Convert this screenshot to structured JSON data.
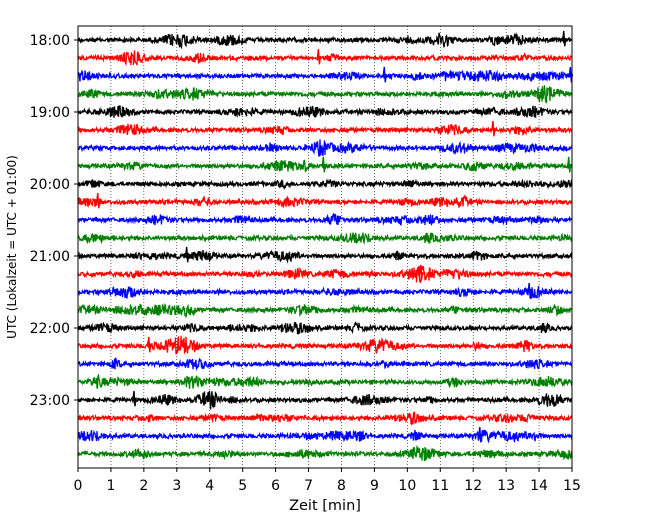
{
  "chart_data": {
    "type": "line",
    "title": "",
    "xlabel": "Zeit  [min]",
    "ylabel": "UTC (Lokalzeit = UTC + 01:00)",
    "xlim": [
      0,
      15
    ],
    "x_ticks": [
      "0",
      "1",
      "2",
      "3",
      "4",
      "5",
      "6",
      "7",
      "8",
      "9",
      "10",
      "11",
      "12",
      "13",
      "14",
      "15"
    ],
    "y_tick_labels": [
      "18:00",
      "19:00",
      "20:00",
      "21:00",
      "22:00",
      "23:00"
    ],
    "y_tick_hours": [
      18,
      19,
      20,
      21,
      22,
      23
    ],
    "rows_start": "18:00",
    "rows_interval_min": 15,
    "row_count": 24,
    "series_colors": [
      "#000000",
      "#ff0000",
      "#0000ff",
      "#008000"
    ],
    "grid": "vertical dotted lines at each minute",
    "spikes": [
      {
        "row": 0,
        "minute": 14.75
      },
      {
        "row": 1,
        "minute": 7.3
      },
      {
        "row": 2,
        "minute": 9.3
      },
      {
        "row": 2,
        "minute": 14.95
      },
      {
        "row": 5,
        "minute": 12.6
      },
      {
        "row": 7,
        "minute": 7.45
      },
      {
        "row": 7,
        "minute": 14.9
      },
      {
        "row": 9,
        "minute": 0.6
      },
      {
        "row": 12,
        "minute": 3.3
      },
      {
        "row": 13,
        "minute": 10.4
      },
      {
        "row": 14,
        "minute": 13.7
      },
      {
        "row": 17,
        "minute": 2.15
      },
      {
        "row": 20,
        "minute": 1.7
      },
      {
        "row": 22,
        "minute": 12.2
      }
    ]
  }
}
